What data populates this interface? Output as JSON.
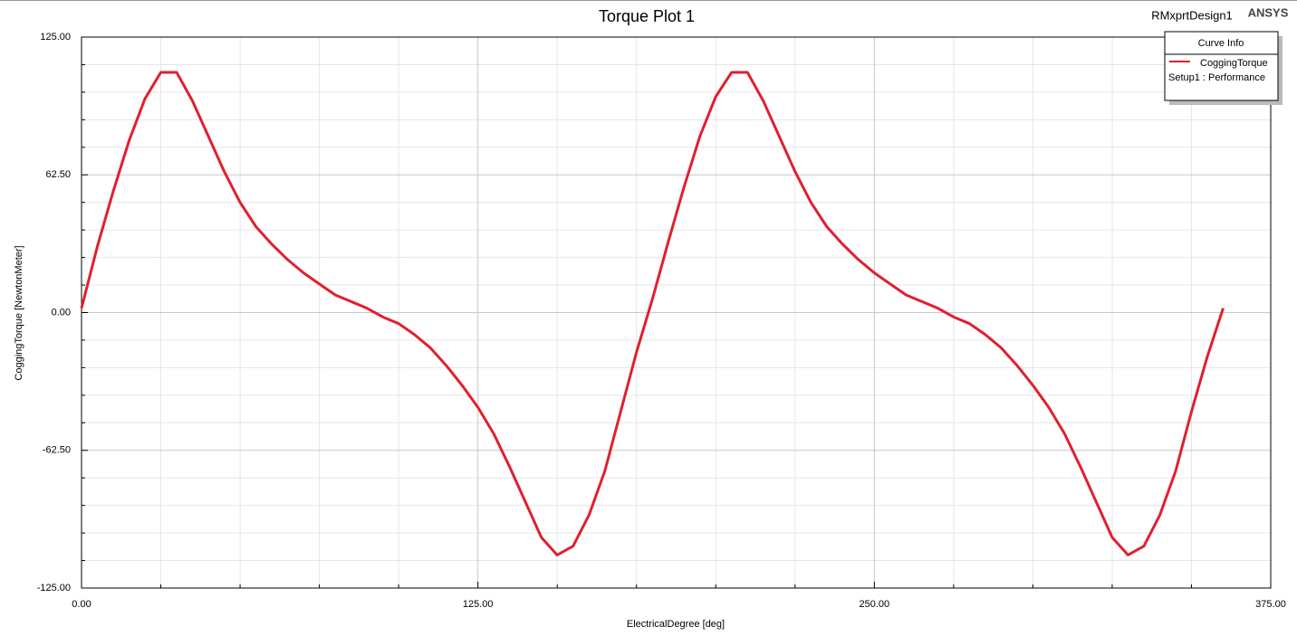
{
  "chart_data": {
    "type": "line",
    "title": "Torque Plot 1",
    "design": "RMxprtDesign1",
    "brand": "ANSYS",
    "xlabel": "ElectricalDegree [deg]",
    "ylabel": "CoggingTorque [NewtonMeter]",
    "legend_title": "Curve Info",
    "legend_subtitle": "Setup1 : Performance",
    "legend": "top-right",
    "grid": true,
    "xlim": [
      0,
      375
    ],
    "ylim": [
      -125,
      125
    ],
    "xticks": [
      {
        "value": 0,
        "label": "0.00"
      },
      {
        "value": 125,
        "label": "125.00"
      },
      {
        "value": 250,
        "label": "250.00"
      },
      {
        "value": 375,
        "label": "375.00"
      }
    ],
    "yticks": [
      {
        "value": -125,
        "label": "-125.00"
      },
      {
        "value": -62.5,
        "label": "-62.50"
      },
      {
        "value": 0,
        "label": "0.00"
      },
      {
        "value": 62.5,
        "label": "62.50"
      },
      {
        "value": 125,
        "label": "125.00"
      }
    ],
    "xminor": [
      25,
      50,
      75,
      100,
      150,
      175,
      200,
      225,
      275,
      300,
      325,
      350
    ],
    "yminor": [
      -112.5,
      -100,
      -87.5,
      -75,
      -50,
      -37.5,
      -25,
      -12.5,
      12.5,
      25,
      37.5,
      50,
      75,
      87.5,
      100,
      112.5
    ],
    "x": [
      0,
      5,
      10,
      15,
      20,
      25,
      30,
      35,
      40,
      45,
      50,
      55,
      60,
      65,
      70,
      75,
      80,
      85,
      90,
      95,
      100,
      105,
      110,
      115,
      120,
      125,
      130,
      135,
      140,
      145,
      150,
      155,
      160,
      165,
      170,
      175,
      180,
      185,
      190,
      195,
      200,
      205,
      210,
      215,
      220,
      225,
      230,
      235,
      240,
      245,
      250,
      255,
      260,
      265,
      270,
      275,
      280,
      285,
      290,
      295,
      300,
      305,
      310,
      315,
      320,
      325,
      330,
      335,
      340,
      345,
      350,
      355,
      360
    ],
    "series": [
      {
        "name": "CoggingTorque",
        "color": "#e0202f",
        "values": [
          2,
          30,
          55,
          78,
          97,
          109,
          109,
          96,
          80,
          64,
          50,
          39,
          31,
          24,
          18,
          13,
          8,
          5,
          2,
          -2,
          -5,
          -10,
          -16,
          -24,
          -33,
          -43,
          -55,
          -70,
          -86,
          -102,
          -110,
          -106,
          -92,
          -72,
          -45,
          -18,
          6,
          32,
          57,
          80,
          98,
          109,
          109,
          96,
          80,
          64,
          50,
          39,
          31,
          24,
          18,
          13,
          8,
          5,
          2,
          -2,
          -5,
          -10,
          -16,
          -24,
          -33,
          -43,
          -55,
          -70,
          -86,
          -102,
          -110,
          -106,
          -92,
          -72,
          -45,
          -20,
          2
        ]
      }
    ]
  }
}
